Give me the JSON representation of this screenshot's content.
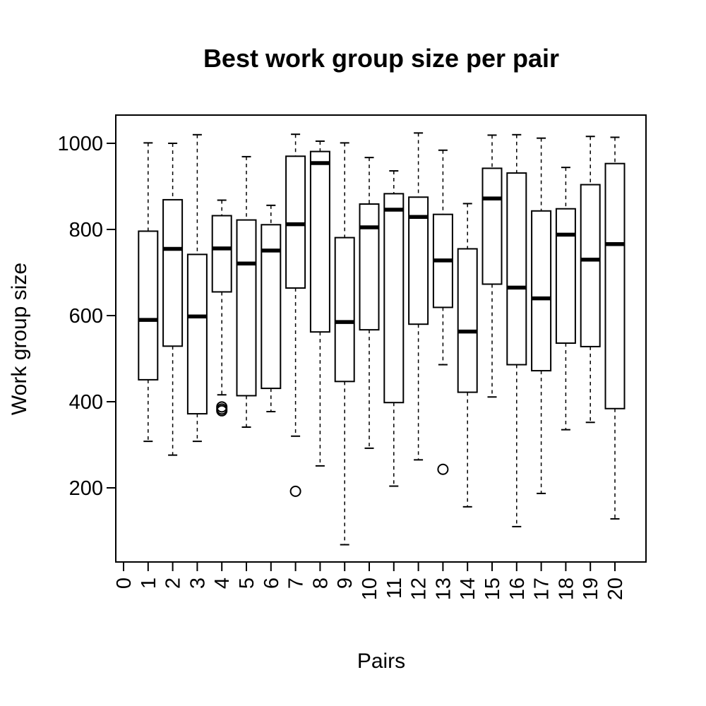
{
  "chart_data": {
    "type": "boxplot",
    "title": "Best work group size per pair",
    "xlabel": "Pairs",
    "ylabel": "Work group size",
    "categories": [
      "0",
      "1",
      "2",
      "3",
      "4",
      "5",
      "6",
      "7",
      "8",
      "9",
      "10",
      "11",
      "12",
      "13",
      "14",
      "15",
      "16",
      "17",
      "18",
      "19",
      "20"
    ],
    "xlim": [
      0,
      20
    ],
    "ylim": [
      30,
      1070
    ],
    "yticks": [
      200,
      400,
      600,
      800,
      1000
    ],
    "grid": false,
    "legend": "none",
    "boxes": [
      {
        "x": 1,
        "low": 308,
        "q1": 451,
        "median": 590,
        "q3": 796,
        "high": 1001,
        "outliers": []
      },
      {
        "x": 2,
        "low": 276,
        "q1": 529,
        "median": 755,
        "q3": 869,
        "high": 1000,
        "outliers": []
      },
      {
        "x": 3,
        "low": 308,
        "q1": 372,
        "median": 598,
        "q3": 742,
        "high": 1020,
        "outliers": []
      },
      {
        "x": 4,
        "low": 416,
        "q1": 655,
        "median": 756,
        "q3": 832,
        "high": 868,
        "outliers": [
          388,
          383,
          379
        ]
      },
      {
        "x": 5,
        "low": 341,
        "q1": 414,
        "median": 721,
        "q3": 822,
        "high": 969,
        "outliers": []
      },
      {
        "x": 6,
        "low": 377,
        "q1": 431,
        "median": 751,
        "q3": 811,
        "high": 856,
        "outliers": []
      },
      {
        "x": 7,
        "low": 320,
        "q1": 664,
        "median": 812,
        "q3": 970,
        "high": 1021,
        "outliers": [
          192
        ]
      },
      {
        "x": 8,
        "low": 251,
        "q1": 562,
        "median": 954,
        "q3": 981,
        "high": 1005,
        "outliers": []
      },
      {
        "x": 9,
        "low": 68,
        "q1": 447,
        "median": 585,
        "q3": 781,
        "high": 1001,
        "outliers": []
      },
      {
        "x": 10,
        "low": 292,
        "q1": 567,
        "median": 805,
        "q3": 859,
        "high": 967,
        "outliers": []
      },
      {
        "x": 11,
        "low": 204,
        "q1": 398,
        "median": 846,
        "q3": 883,
        "high": 936,
        "outliers": []
      },
      {
        "x": 12,
        "low": 265,
        "q1": 580,
        "median": 829,
        "q3": 875,
        "high": 1024,
        "outliers": []
      },
      {
        "x": 13,
        "low": 486,
        "q1": 619,
        "median": 728,
        "q3": 835,
        "high": 984,
        "outliers": [
          243
        ]
      },
      {
        "x": 14,
        "low": 156,
        "q1": 422,
        "median": 563,
        "q3": 755,
        "high": 860,
        "outliers": []
      },
      {
        "x": 15,
        "low": 411,
        "q1": 673,
        "median": 872,
        "q3": 942,
        "high": 1019,
        "outliers": []
      },
      {
        "x": 16,
        "low": 110,
        "q1": 486,
        "median": 665,
        "q3": 931,
        "high": 1020,
        "outliers": []
      },
      {
        "x": 17,
        "low": 187,
        "q1": 472,
        "median": 640,
        "q3": 843,
        "high": 1012,
        "outliers": []
      },
      {
        "x": 18,
        "low": 335,
        "q1": 536,
        "median": 788,
        "q3": 848,
        "high": 944,
        "outliers": []
      },
      {
        "x": 19,
        "low": 352,
        "q1": 528,
        "median": 730,
        "q3": 904,
        "high": 1016,
        "outliers": []
      },
      {
        "x": 20,
        "low": 128,
        "q1": 384,
        "median": 766,
        "q3": 953,
        "high": 1014,
        "outliers": []
      }
    ],
    "colors": {
      "stroke": "#000000",
      "box_fill": "#ffffff",
      "background": "#ffffff"
    }
  }
}
